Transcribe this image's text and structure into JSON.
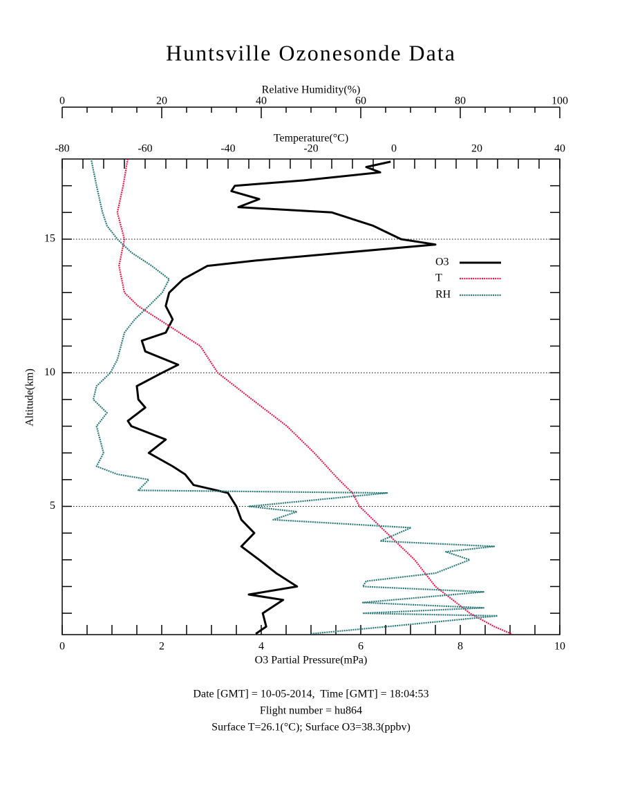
{
  "chart_data": {
    "type": "profile",
    "title": "Huntsville Ozonesonde Data",
    "y_axis": {
      "label": "Altitude(km)",
      "lim": [
        0.2,
        18
      ],
      "ticks": [
        5,
        10,
        15
      ],
      "minor_ticks": [
        1,
        2,
        3,
        4,
        6,
        7,
        8,
        9,
        11,
        12,
        13,
        14,
        16,
        17
      ]
    },
    "o3_axis": {
      "label": "O3 Partial Pressure(mPa)",
      "lim": [
        0,
        10
      ],
      "ticks": [
        0,
        2,
        4,
        6,
        8,
        10
      ],
      "minor_ticks": [
        0.5,
        1,
        1.5,
        2.5,
        3,
        3.5,
        4.5,
        5,
        5.5,
        6.5,
        7,
        7.5,
        8.5,
        9,
        9.5
      ]
    },
    "temperature_axis": {
      "label": "Temperature(°C)",
      "lim": [
        -80,
        40
      ],
      "ticks": [
        -80,
        -60,
        -40,
        -20,
        0,
        20,
        40
      ],
      "minor_ticks": [
        -75,
        -70,
        -65,
        -55,
        -50,
        -45,
        -35,
        -30,
        -25,
        -15,
        -10,
        -5,
        5,
        10,
        15,
        25,
        30,
        35
      ]
    },
    "humidity_axis": {
      "label": "Relative Humidity(%)",
      "lim": [
        0,
        100
      ],
      "ticks": [
        0,
        20,
        40,
        60,
        80,
        100
      ],
      "minor_ticks": [
        5,
        10,
        15,
        25,
        30,
        35,
        45,
        50,
        55,
        65,
        70,
        75,
        85,
        90,
        95
      ]
    },
    "grid": true,
    "series": [
      {
        "name": "O3",
        "color": "#000000",
        "axis": "o3_axis",
        "style": "solid",
        "altitude": [
          0.23,
          0.5,
          1,
          1.5,
          1.7,
          2,
          2.5,
          3,
          3.5,
          4,
          4.5,
          5,
          5.5,
          5.8,
          6.2,
          6.5,
          7,
          7.5,
          8,
          8.2,
          8.7,
          9,
          9.5,
          10,
          10.3,
          10.8,
          11.2,
          11.5,
          12,
          12.5,
          13,
          13.5,
          14,
          14.2,
          14.5,
          14.8,
          15,
          15.5,
          16,
          16.2,
          16.5,
          16.8,
          17,
          17.2,
          17.5,
          17.7,
          17.9
        ],
        "values": [
          3.89,
          4.1,
          4.03,
          4.44,
          3.75,
          4.72,
          4.3,
          3.96,
          3.6,
          3.86,
          3.6,
          3.5,
          3.33,
          2.64,
          2.47,
          2.22,
          1.74,
          2.08,
          1.39,
          1.32,
          1.67,
          1.53,
          1.5,
          2.01,
          2.33,
          1.67,
          1.6,
          2.08,
          2.22,
          2.08,
          2.15,
          2.43,
          2.92,
          3.89,
          5.69,
          7.5,
          6.81,
          6.25,
          5.42,
          3.54,
          3.96,
          3.4,
          3.47,
          4.86,
          6.39,
          6.11,
          6.6
        ]
      },
      {
        "name": "T",
        "color": "#e8194a",
        "axis": "temperature_axis",
        "style": "dotted",
        "altitude": [
          0.23,
          0.5,
          1,
          1.5,
          2,
          3,
          4,
          5,
          5.5,
          6,
          7,
          8,
          9,
          10,
          11,
          12,
          12.5,
          13,
          14,
          15,
          16,
          17,
          18
        ],
        "values": [
          28.3,
          24.2,
          18.3,
          14.2,
          10,
          5,
          -1.7,
          -8.3,
          -10,
          -13.3,
          -19.2,
          -25.8,
          -34.2,
          -42.5,
          -46.7,
          -56.7,
          -61.7,
          -65,
          -66.3,
          -65,
          -66.7,
          -65.3,
          -64.2
        ]
      },
      {
        "name": "RH",
        "color": "#2a7878",
        "axis": "humidity_axis",
        "style": "dotted",
        "altitude": [
          0.23,
          0.5,
          0.9,
          1,
          1.2,
          1.4,
          1.8,
          2,
          2.2,
          2.5,
          3,
          3.3,
          3.5,
          3.7,
          4.2,
          4.5,
          4.8,
          5,
          5.5,
          5.6,
          6,
          6.2,
          6.5,
          7,
          8,
          8.5,
          9,
          9.5,
          10,
          10.5,
          11,
          11.5,
          12,
          12.5,
          13,
          13.5,
          14,
          14.5,
          15,
          15.5,
          16,
          17,
          18
        ],
        "values": [
          50,
          65.3,
          87.5,
          60.4,
          84.7,
          60.4,
          84.7,
          60.4,
          61.1,
          75,
          81.9,
          77.1,
          86.8,
          63.9,
          70.1,
          42.4,
          47.2,
          37.5,
          65.3,
          15.3,
          17.4,
          11.1,
          6.9,
          8.3,
          6.9,
          9,
          6.25,
          6.9,
          9.7,
          11.1,
          11.8,
          12.5,
          14.6,
          17.4,
          20.1,
          21.5,
          18,
          13.9,
          11.1,
          9,
          8.1,
          6.9,
          5.8
        ]
      }
    ],
    "footer": [
      "Date [GMT] = 10-05-2014,  Time [GMT] = 18:04:53",
      "Flight number = hu864",
      "Surface T=26.1(°C); Surface O3=38.3(ppbv)"
    ]
  }
}
